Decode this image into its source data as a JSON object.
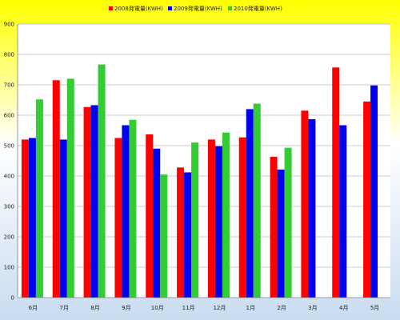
{
  "chart_data": {
    "type": "bar",
    "title": "",
    "xlabel": "",
    "ylabel": "",
    "categories": [
      "6月",
      "7月",
      "8月",
      "9月",
      "10月",
      "11月",
      "12月",
      "1月",
      "2月",
      "3月",
      "4月",
      "5月"
    ],
    "series": [
      {
        "name": "2008発電量(KWH)",
        "color": "#ff0000",
        "values": [
          520,
          715,
          627,
          525,
          537,
          428,
          520,
          527,
          463,
          615,
          757,
          645
        ]
      },
      {
        "name": "2009発電量(KWH)",
        "color": "#0000ee",
        "values": [
          525,
          520,
          633,
          567,
          490,
          412,
          498,
          620,
          421,
          587,
          567,
          698
        ]
      },
      {
        "name": "2010発電量(KWH)",
        "color": "#33cc33",
        "values": [
          652,
          720,
          767,
          585,
          405,
          510,
          543,
          638,
          493,
          null,
          null,
          null
        ]
      }
    ],
    "ylim": [
      0,
      900
    ],
    "yticks": [
      0,
      100,
      200,
      300,
      400,
      500,
      600,
      700,
      800,
      900
    ],
    "grid": true,
    "legend_position": "top"
  },
  "colors": {
    "background_top": "#ffff00",
    "background_bottom": "#c9dcf0",
    "plot_background": "#ffffff",
    "gridline": "#9a9a9a",
    "axis": "#808080"
  }
}
